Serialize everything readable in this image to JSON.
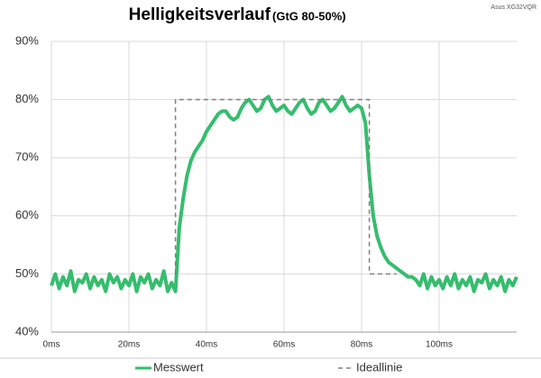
{
  "chart_data": {
    "type": "line",
    "title": "Helligkeitsverlauf",
    "subtitle": "(GtG 80-50%)",
    "corner_note": "Asus XG32VQR",
    "xlim": [
      0,
      120
    ],
    "ylim": [
      40,
      90
    ],
    "xticks": [
      {
        "value": 0,
        "label": "0ms"
      },
      {
        "value": 20,
        "label": "20ms"
      },
      {
        "value": 40,
        "label": "40ms"
      },
      {
        "value": 60,
        "label": "60ms"
      },
      {
        "value": 80,
        "label": "80ms"
      },
      {
        "value": 100,
        "label": "100ms"
      }
    ],
    "yticks": [
      {
        "value": 40,
        "label": "40%"
      },
      {
        "value": 50,
        "label": "50%"
      },
      {
        "value": 60,
        "label": "60%"
      },
      {
        "value": 70,
        "label": "70%"
      },
      {
        "value": 80,
        "label": "80%"
      },
      {
        "value": 90,
        "label": "90%"
      }
    ],
    "grid": true,
    "series": [
      {
        "name": "Messwert",
        "color": "#35bd6e",
        "style": "solid",
        "x": [
          0,
          1,
          2,
          3,
          4,
          5,
          6,
          7,
          8,
          9,
          10,
          11,
          12,
          13,
          14,
          15,
          16,
          17,
          18,
          19,
          20,
          21,
          22,
          23,
          24,
          25,
          26,
          27,
          28,
          29,
          30,
          31,
          32,
          33,
          34,
          35,
          36,
          37,
          38,
          39,
          40,
          41,
          42,
          43,
          44,
          45,
          46,
          47,
          48,
          49,
          50,
          51,
          52,
          53,
          54,
          55,
          56,
          57,
          58,
          59,
          60,
          61,
          62,
          63,
          64,
          65,
          66,
          67,
          68,
          69,
          70,
          71,
          72,
          73,
          74,
          75,
          76,
          77,
          78,
          79,
          80,
          81,
          82,
          83,
          84,
          85,
          86,
          87,
          88,
          89,
          90,
          91,
          92,
          93,
          94,
          95,
          96,
          97,
          98,
          99,
          100,
          101,
          102,
          103,
          104,
          105,
          106,
          107,
          108,
          109,
          110,
          111,
          112,
          113,
          114,
          115,
          116,
          117,
          118,
          119,
          120
        ],
        "values": [
          48,
          50,
          47.5,
          49.5,
          48,
          50.5,
          47,
          49,
          48.5,
          50,
          47.5,
          49.5,
          48,
          49,
          47,
          50,
          48.5,
          49.5,
          47.5,
          49,
          48,
          50,
          47,
          49.5,
          48.5,
          50,
          47.5,
          49,
          48,
          50.5,
          47,
          48.5,
          47,
          58,
          63,
          67,
          69.5,
          71,
          72,
          73,
          74.5,
          75.5,
          76.5,
          77.5,
          78,
          78,
          77,
          76.5,
          77,
          78.5,
          79.5,
          80,
          79,
          78,
          78.5,
          80,
          80.5,
          79,
          78,
          78.5,
          79,
          78,
          77.5,
          78.5,
          79.5,
          80,
          78.5,
          77.5,
          78,
          79.5,
          80,
          79,
          78,
          78.5,
          79.5,
          80.5,
          79,
          78,
          78.5,
          79,
          78.5,
          76,
          67,
          60,
          56.5,
          54.5,
          53,
          52,
          51.5,
          51,
          50.5,
          50,
          49.5,
          49.5,
          49,
          48,
          50,
          47.5,
          49.5,
          48,
          49,
          47.5,
          49.5,
          48,
          50,
          47.5,
          49,
          48,
          49.5,
          47,
          49,
          48.5,
          50,
          47.5,
          49,
          48,
          49.5,
          47,
          49,
          48,
          49.5
        ]
      },
      {
        "name": "Ideallinie",
        "color": "#808080",
        "style": "dashed",
        "x": [
          32,
          32,
          82,
          82,
          89
        ],
        "values": [
          50,
          80,
          80,
          50,
          50
        ]
      }
    ]
  }
}
